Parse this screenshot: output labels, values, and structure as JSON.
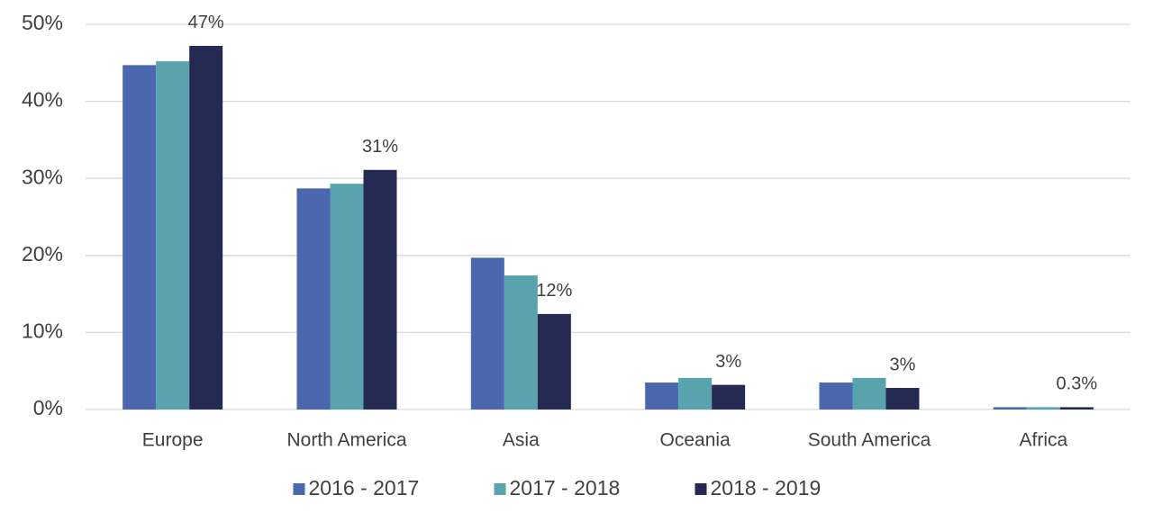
{
  "chart_data": {
    "type": "bar",
    "categories": [
      "Europe",
      "North America",
      "Asia",
      "Oceania",
      "South America",
      "Africa"
    ],
    "series": [
      {
        "name": "2016 - 2017",
        "color": "#4a67b0",
        "values": [
          44.7,
          28.7,
          19.7,
          3.5,
          3.5,
          0.3
        ]
      },
      {
        "name": "2017 - 2018",
        "color": "#58a3ad",
        "values": [
          45.2,
          29.3,
          17.4,
          4.1,
          4.1,
          0.3
        ]
      },
      {
        "name": "2018 - 2019",
        "color": "#252a52",
        "values": [
          47.2,
          31.1,
          12.4,
          3.2,
          2.8,
          0.3
        ],
        "value_labels": [
          "47%",
          "31%",
          "12%",
          "3%",
          "3%",
          "0.3%"
        ]
      }
    ],
    "ylim": [
      0,
      50
    ],
    "yticks": [
      {
        "value": 0,
        "label": "0%"
      },
      {
        "value": 10,
        "label": "10%"
      },
      {
        "value": 20,
        "label": "20%"
      },
      {
        "value": 30,
        "label": "30%"
      },
      {
        "value": 40,
        "label": "40%"
      },
      {
        "value": 50,
        "label": "50%"
      }
    ],
    "grid": true,
    "legend": "bottom"
  }
}
